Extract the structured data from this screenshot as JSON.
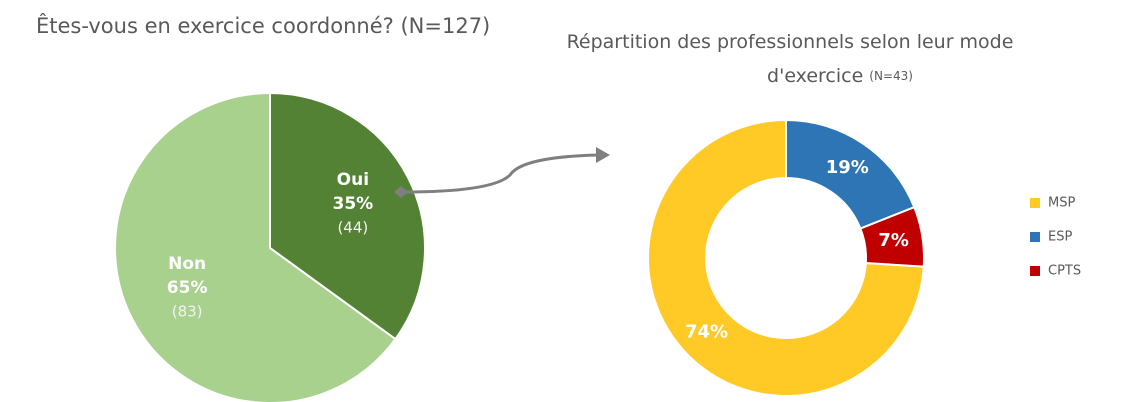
{
  "chart_data": [
    {
      "type": "pie",
      "title": "Êtes-vous en exercice coordonné? (N=127)",
      "categories": [
        "Oui",
        "Non"
      ],
      "values": [
        35,
        65
      ],
      "value_labels": [
        "35%",
        "65%"
      ],
      "count_labels": [
        "(44)",
        "(83)"
      ],
      "colors": [
        "#548235",
        "#a9d18e"
      ]
    },
    {
      "type": "donut",
      "title": "Répartition des professionnels selon leur mode d'exercice",
      "subtitle": "(N=43)",
      "categories": [
        "MSP",
        "ESP",
        "CPTS"
      ],
      "values": [
        74,
        19,
        7
      ],
      "value_labels": [
        "74%",
        "19%",
        "7%"
      ],
      "colors": [
        "#ffc926",
        "#2e75b6",
        "#c00000"
      ],
      "legend": "right"
    }
  ]
}
